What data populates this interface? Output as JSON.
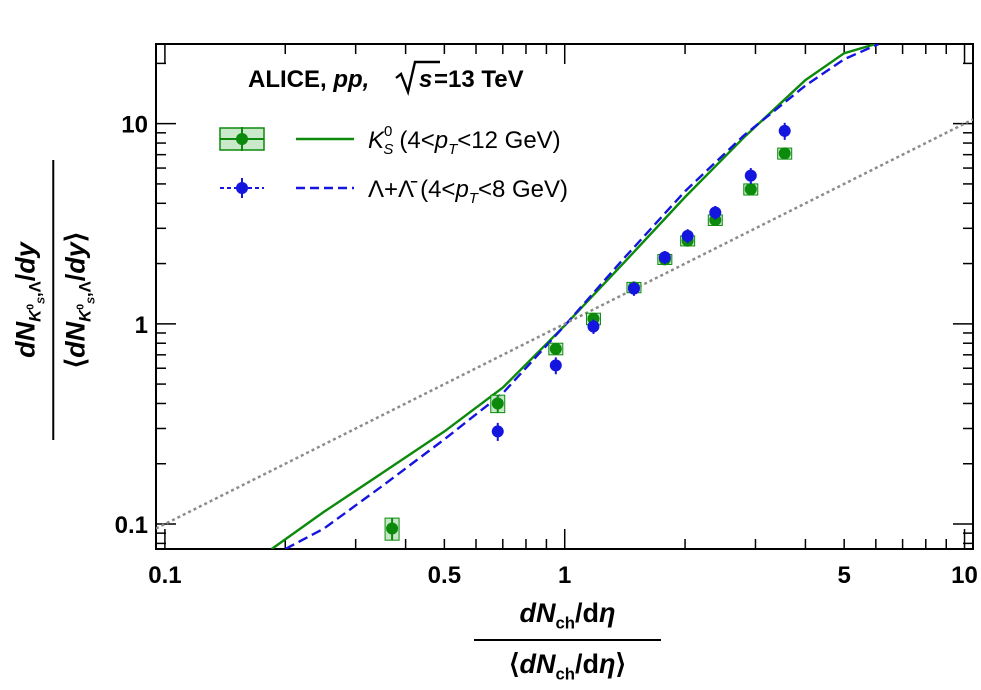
{
  "chart_data": {
    "type": "scatter",
    "title": "ALICE, pp, √s = 13 TeV",
    "title_parts": {
      "experiment": "ALICE,",
      "system": "pp,",
      "sqrt": "√",
      "s": "s",
      "energy": "=13 TeV"
    },
    "xlabel": "dNch/dη / ⟨dNch/dη⟩",
    "ylabel": "dN(K0S,Λ)/dy / ⟨dN(K0S,Λ)/dy⟩",
    "x_scale": "log",
    "y_scale": "log",
    "xlim": [
      0.095,
      10.5
    ],
    "ylim": [
      0.075,
      25
    ],
    "x_ticks": [
      0.1,
      0.5,
      1,
      5,
      10
    ],
    "x_tick_labels": [
      "0.1",
      "0.5",
      "1",
      "5",
      "10"
    ],
    "y_ticks": [
      0.1,
      1,
      10
    ],
    "y_tick_labels": [
      "0.1",
      "1",
      "10"
    ],
    "legend_position": "top-left",
    "grid": false,
    "series": [
      {
        "name": "K0S (4<pT<12 GeV)",
        "label_main": "K",
        "label_sup": "0",
        "label_sub": "S",
        "label_range_open": "(4<",
        "label_p": "p",
        "label_T": "T",
        "label_range_close": "<12 GeV)",
        "color": "#0c8a0c",
        "x": [
          0.37,
          0.68,
          0.95,
          1.18,
          1.49,
          1.78,
          2.03,
          2.38,
          2.92,
          3.55
        ],
        "y": [
          0.095,
          0.4,
          0.75,
          1.06,
          1.52,
          2.1,
          2.6,
          3.3,
          4.7,
          7.1
        ],
        "yerr": [
          0.012,
          0.04,
          0.05,
          0.07,
          0.09,
          0.12,
          0.15,
          0.2,
          0.3,
          0.45
        ]
      },
      {
        "name": "Λ+Λ̄ (4<pT<8 GeV)",
        "label_main": "Λ+Λ̄",
        "label_range_open": "(4<",
        "label_p": "p",
        "label_T": "T",
        "label_range_close": "<8 GeV)",
        "color": "#1515e0",
        "x": [
          0.68,
          0.95,
          1.18,
          1.49,
          1.78,
          2.03,
          2.38,
          2.92,
          3.55
        ],
        "y": [
          0.29,
          0.62,
          0.97,
          1.5,
          2.15,
          2.75,
          3.6,
          5.5,
          9.2
        ],
        "yerr": [
          0.03,
          0.06,
          0.08,
          0.12,
          0.16,
          0.22,
          0.28,
          0.5,
          0.9
        ]
      }
    ],
    "curves": [
      {
        "name": "K0S model",
        "style": "solid",
        "color": "#0c8a0c",
        "x": [
          0.185,
          0.25,
          0.35,
          0.5,
          0.7,
          1.0,
          1.4,
          2.0,
          2.8,
          4.0,
          5.0,
          6.0
        ],
        "y": [
          0.075,
          0.115,
          0.18,
          0.29,
          0.48,
          0.98,
          2.0,
          4.3,
          8.5,
          16.5,
          22.5,
          25.0
        ]
      },
      {
        "name": "Λ model",
        "style": "dashed",
        "color": "#1515e0",
        "x": [
          0.2,
          0.25,
          0.35,
          0.5,
          0.7,
          1.0,
          1.4,
          2.0,
          2.8,
          4.0,
          5.0,
          6.1
        ],
        "y": [
          0.075,
          0.095,
          0.155,
          0.265,
          0.45,
          0.98,
          2.1,
          4.6,
          8.7,
          15.5,
          21.0,
          25.0
        ]
      },
      {
        "name": "linear reference",
        "style": "dotted",
        "color": "#8c8c8c",
        "x": [
          0.095,
          10.5
        ],
        "y": [
          0.095,
          10.5
        ]
      }
    ]
  }
}
